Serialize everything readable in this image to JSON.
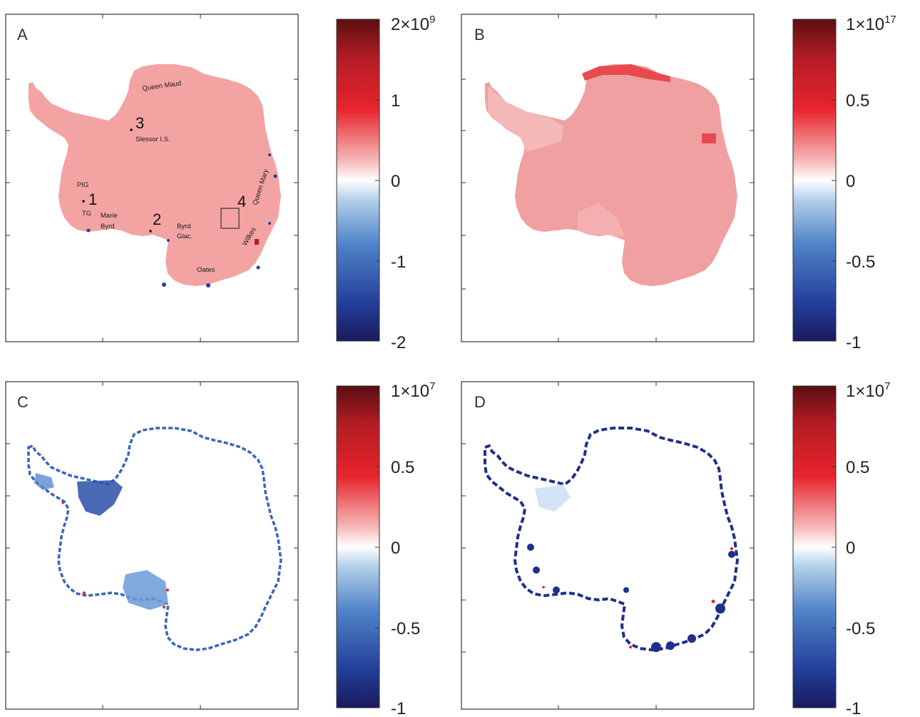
{
  "figure": {
    "panels": [
      {
        "label": "A",
        "colorbar": {
          "exponent_label": "2×10",
          "exponent": "9",
          "tick_labels": [
            "1",
            "0",
            "-1",
            "-2"
          ]
        },
        "annotations": {
          "queen_maud": "Queen Maud",
          "num3": "3",
          "slessor": "Slessor I.S.",
          "pig": "PIG",
          "num1": "1",
          "tg": "TG",
          "marie": "Marie",
          "byrd": "Byrd",
          "num2": "2",
          "byrd_glac_1": "Byrd",
          "byrd_glac_2": "Glac.",
          "num4": "4",
          "queen_mary": "Queen Mary",
          "wilkes": "Wilkes",
          "oates": "Oates"
        }
      },
      {
        "label": "B",
        "colorbar": {
          "exponent_label": "1×10",
          "exponent": "17",
          "tick_labels": [
            "0.5",
            "0",
            "-0.5",
            "-1"
          ]
        }
      },
      {
        "label": "C",
        "colorbar": {
          "exponent_label": "1×10",
          "exponent": "7",
          "tick_labels": [
            "0.5",
            "0",
            "-0.5",
            "-1"
          ]
        }
      },
      {
        "label": "D",
        "colorbar": {
          "exponent_label": "1×10",
          "exponent": "7",
          "tick_labels": [
            "0.5",
            "0",
            "-0.5",
            "-1"
          ]
        }
      }
    ],
    "colormap": [
      "#1a1a5e",
      "#233f9a",
      "#4f83c8",
      "#b4d0ea",
      "#ffffff",
      "#f6b9b9",
      "#e8242c",
      "#b41c24",
      "#5a0f12"
    ],
    "fill_colors": {
      "map_a": "#f4a3a3",
      "map_b": "#f0a0a0",
      "blue_edge": "#1f2f8c",
      "mid_blue": "#6a9ad8"
    }
  },
  "chart_data": [
    {
      "type": "heatmap",
      "panel": "A",
      "colorbar_range": [
        -2000000000.0,
        2000000000.0
      ],
      "colorbar_ticks": [
        -2,
        -1,
        0,
        1,
        2
      ],
      "colorbar_scale": "×10^9"
    },
    {
      "type": "heatmap",
      "panel": "B",
      "colorbar_range": [
        -1e+17,
        1e+17
      ],
      "colorbar_ticks": [
        -1,
        -0.5,
        0,
        0.5,
        1
      ],
      "colorbar_scale": "×10^17"
    },
    {
      "type": "heatmap",
      "panel": "C",
      "colorbar_range": [
        -10000000.0,
        10000000.0
      ],
      "colorbar_ticks": [
        -1,
        -0.5,
        0,
        0.5,
        1
      ],
      "colorbar_scale": "×10^7"
    },
    {
      "type": "heatmap",
      "panel": "D",
      "colorbar_range": [
        -10000000.0,
        10000000.0
      ],
      "colorbar_ticks": [
        -1,
        -0.5,
        0,
        0.5,
        1
      ],
      "colorbar_scale": "×10^7"
    }
  ]
}
